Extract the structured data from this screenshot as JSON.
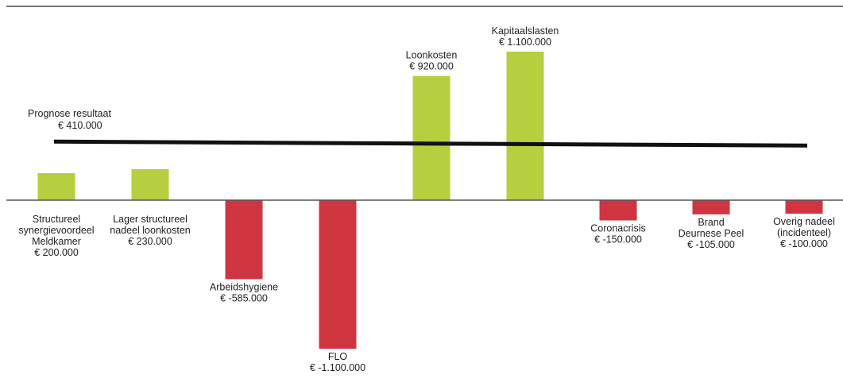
{
  "chart_data": {
    "type": "bar",
    "title": "",
    "xlabel": "",
    "ylabel": "",
    "categories": [
      [
        "Structureel",
        "synergievoordeel",
        "Meldkamer"
      ],
      [
        "Lager structureel",
        "nadeel loonkosten"
      ],
      [
        "Arbeidshygiene"
      ],
      [
        "FLO"
      ],
      [
        "Loonkosten"
      ],
      [
        "Kapitaalslasten"
      ],
      [
        "Coronacrisis"
      ],
      [
        "Brand",
        "Deurnese Peel"
      ],
      [
        "Overig nadeel",
        "(incidenteel)"
      ]
    ],
    "value_labels": [
      "€ 200.000",
      "€ 230.000",
      "€ -585.000",
      "€ -1.100.000",
      "€ 920.000",
      "€ 1.100.000",
      "€ -150.000",
      "€ -105.000",
      "€ -100.000"
    ],
    "values": [
      200000,
      230000,
      -585000,
      -1100000,
      920000,
      1100000,
      -150000,
      -105000,
      -100000
    ],
    "reference_line": {
      "label": "Prognose resultaat",
      "value_label": "€ 410.000",
      "value": 410000
    },
    "ylim": [
      -1100000,
      1300000
    ],
    "grid": false,
    "legend": "none",
    "colors": {
      "positive": "#b5cf3f",
      "negative": "#cf3540",
      "axis": "#555555",
      "reference": "#111111"
    }
  }
}
